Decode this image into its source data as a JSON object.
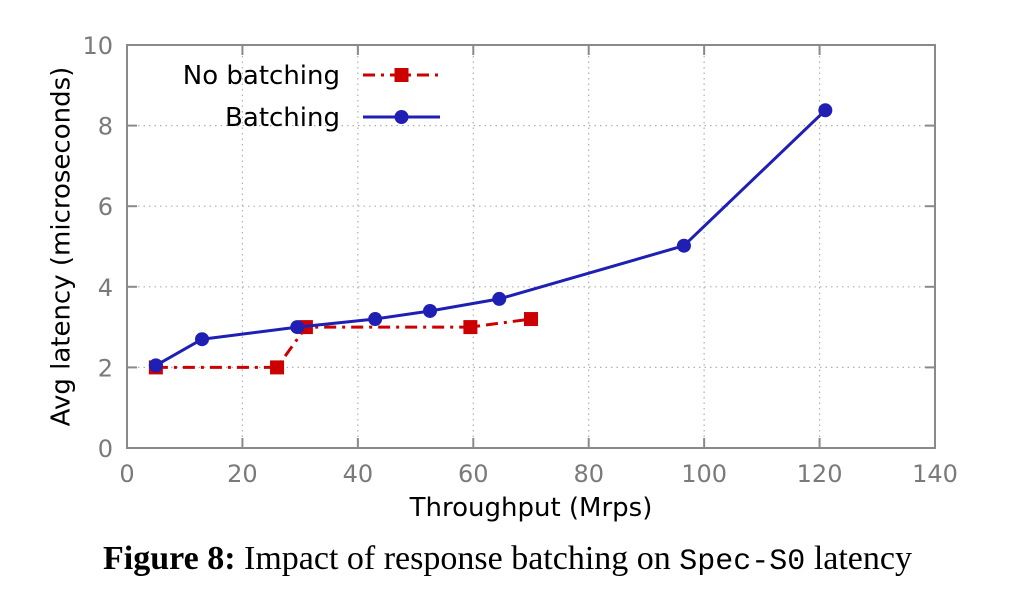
{
  "chart_data": {
    "type": "line",
    "xlabel": "Throughput (Mrps)",
    "ylabel": "Avg latency (microseconds)",
    "xlim": [
      0,
      140
    ],
    "ylim": [
      0,
      10
    ],
    "xticks": [
      0,
      20,
      40,
      60,
      80,
      100,
      120,
      140
    ],
    "yticks": [
      0,
      2,
      4,
      6,
      8,
      10
    ],
    "grid": true,
    "legend_position": "top-left",
    "series": [
      {
        "name": "No batching",
        "color": "#cc0000",
        "marker": "square",
        "line_style": "dash-dot",
        "points": [
          [
            5,
            2.0
          ],
          [
            26,
            2.0
          ],
          [
            31,
            3.0
          ],
          [
            59.5,
            3.0
          ],
          [
            70,
            3.2
          ]
        ]
      },
      {
        "name": "Batching",
        "color": "#1f1fb4",
        "marker": "circle",
        "line_style": "solid",
        "points": [
          [
            5,
            2.05
          ],
          [
            13,
            2.7
          ],
          [
            29.5,
            3.0
          ],
          [
            43,
            3.2
          ],
          [
            52.5,
            3.4
          ],
          [
            64.5,
            3.7
          ],
          [
            96.5,
            5.02
          ],
          [
            121,
            8.38
          ]
        ]
      }
    ]
  },
  "caption": {
    "lead": "Figure 8:",
    "text_before": " Impact of response batching on ",
    "code": "Spec-S0",
    "text_after": " latency"
  }
}
